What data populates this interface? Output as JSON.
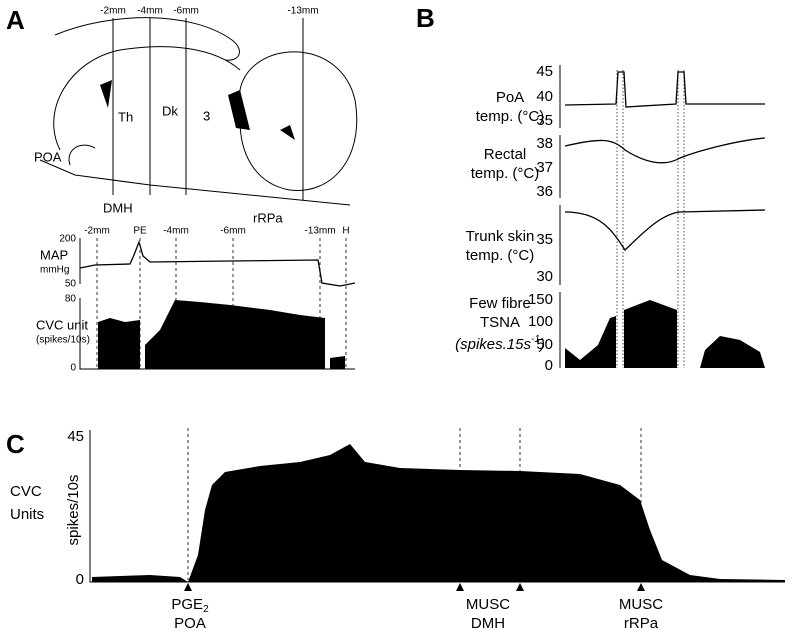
{
  "panel_a": {
    "label": "A",
    "sections": [
      "-2mm",
      "-4mm",
      "-6mm",
      "-13mm"
    ],
    "regions": [
      "Th",
      "Dk",
      "3",
      "POA",
      "DMH",
      "rRPa"
    ],
    "events": [
      "-2mm",
      "PE",
      "-4mm",
      "-6mm",
      "-13mm",
      "H"
    ],
    "map": {
      "label": "MAP",
      "unit": "mmHg",
      "ticks": [
        "200",
        "50"
      ]
    },
    "cvc": {
      "label": "CVC unit",
      "unit": "(spikes/10s)",
      "ticks": [
        "80",
        "0"
      ]
    }
  },
  "panel_b": {
    "label": "B",
    "poa": {
      "label": "PoA",
      "unit": "temp. (°C)",
      "ticks": [
        "45",
        "40",
        "35"
      ]
    },
    "rectal": {
      "label": "Rectal",
      "unit": "temp. (°C)",
      "ticks": [
        "38",
        "37",
        "36"
      ]
    },
    "trunk": {
      "label": "Trunk skin",
      "unit": "temp. (°C)",
      "ticks": [
        "35",
        "30"
      ]
    },
    "tsna": {
      "label": "Few fibre",
      "label2": "TSNA",
      "unit": "(spikes.15s",
      "unit_sup": "-1",
      "unit_end": ")",
      "ticks": [
        "150",
        "100",
        "50",
        "0"
      ]
    }
  },
  "panel_c": {
    "label": "C",
    "title": "CVC",
    "title2": "Units",
    "y_label": "spikes/10s",
    "ticks": [
      "45",
      "0"
    ],
    "events": [
      {
        "drug": "PGE",
        "drug_sub": "2",
        "site": "POA"
      },
      {
        "drug": "MUSC",
        "site": "DMH"
      },
      {
        "drug": "MUSC",
        "site": "rRPa"
      }
    ]
  }
}
